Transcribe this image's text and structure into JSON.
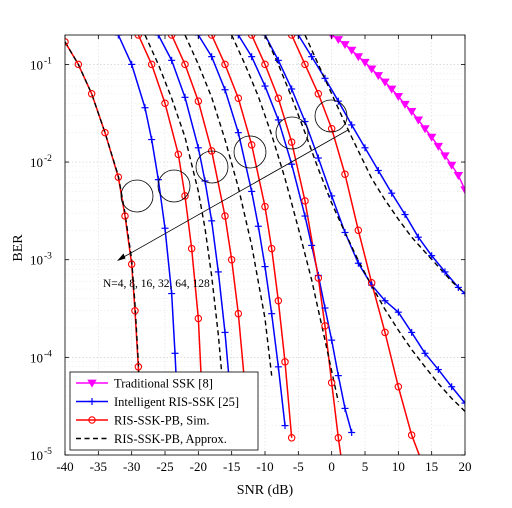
{
  "chart_data": {
    "type": "line",
    "title": "",
    "xlabel": "SNR (dB)",
    "ylabel": "BER",
    "xlim": [
      -40,
      20
    ],
    "ylim": [
      1e-05,
      0.2
    ],
    "yscale": "log",
    "grid": true,
    "legend_position": "bottom-left",
    "xticks": [
      -40,
      -35,
      -30,
      -25,
      -20,
      -15,
      -10,
      -5,
      0,
      5,
      10,
      15,
      20
    ],
    "xtick_labels": [
      "-40",
      "-35",
      "-30",
      "-25",
      "-20",
      "-15",
      "-10",
      "-5",
      "0",
      "5",
      "10",
      "15",
      "20"
    ],
    "yticks": [
      1e-05,
      0.0001,
      0.001,
      0.01,
      0.1
    ],
    "ytick_labels": [
      "10^-5",
      "10^-4",
      "10^-3",
      "10^-2",
      "10^-1"
    ],
    "annotation": "N=4, 8, 16, 32, 64, 128",
    "legend": [
      {
        "label": "Traditional SSK [8]",
        "color": "#ff00ff",
        "marker": "triangle-down",
        "dash": "solid"
      },
      {
        "label": "Intelligent RIS-SSK [25]",
        "color": "#0000ff",
        "marker": "plus",
        "dash": "solid"
      },
      {
        "label": "RIS-SSK-PB, Sim.",
        "color": "#ff0000",
        "marker": "circle",
        "dash": "solid"
      },
      {
        "label": "RIS-SSK-PB, Approx.",
        "color": "#000000",
        "marker": "none",
        "dash": "dashed"
      }
    ],
    "series": [
      {
        "name": "Traditional SSK [8]",
        "color": "#ff00ff",
        "marker": "triangle-down",
        "dash": "solid",
        "x": [
          0,
          1,
          2,
          3,
          4,
          5,
          6,
          7,
          8,
          9,
          10,
          11,
          12,
          13,
          14,
          15,
          16,
          17,
          18,
          19,
          20
        ],
        "y": [
          0.2,
          0.18,
          0.16,
          0.14,
          0.12,
          0.105,
          0.09,
          0.077,
          0.066,
          0.056,
          0.047,
          0.039,
          0.033,
          0.027,
          0.022,
          0.018,
          0.0145,
          0.0116,
          0.0093,
          0.0073,
          0.0052
        ]
      },
      {
        "name": "Intelligent RIS-SSK [25], N=4",
        "color": "#0000ff",
        "marker": "plus",
        "dash": "solid",
        "x": [
          -5,
          -3,
          -1,
          1,
          3,
          5,
          7,
          9,
          11,
          13,
          15,
          17,
          19,
          20
        ],
        "y": [
          0.2,
          0.12,
          0.072,
          0.042,
          0.024,
          0.014,
          0.0082,
          0.0048,
          0.0029,
          0.0017,
          0.0011,
          0.00075,
          0.00052,
          0.00045
        ]
      },
      {
        "name": "Intelligent RIS-SSK [25], N=8",
        "color": "#0000ff",
        "marker": "plus",
        "dash": "solid",
        "x": [
          -10,
          -8,
          -6,
          -4,
          -2,
          0,
          2,
          4,
          6,
          8,
          10,
          12,
          14,
          16,
          18,
          20
        ],
        "y": [
          0.2,
          0.11,
          0.056,
          0.026,
          0.011,
          0.0045,
          0.0019,
          0.00092,
          0.00055,
          0.00038,
          0.00029,
          0.00018,
          0.00011,
          7.5e-05,
          5e-05,
          3.4e-05
        ]
      },
      {
        "name": "Intelligent RIS-SSK [25], N=16",
        "color": "#0000ff",
        "marker": "plus",
        "dash": "solid",
        "x": [
          -14,
          -12,
          -10,
          -8,
          -6,
          -4,
          -3,
          -2,
          -1,
          0,
          1,
          2,
          3
        ],
        "y": [
          0.2,
          0.12,
          0.06,
          0.027,
          0.0095,
          0.0028,
          0.0014,
          0.00069,
          0.00032,
          0.00015,
          6.5e-05,
          3e-05,
          1.7e-05
        ]
      },
      {
        "name": "Intelligent RIS-SSK [25], N=32",
        "color": "#0000ff",
        "marker": "plus",
        "dash": "solid",
        "x": [
          -20,
          -18,
          -16,
          -14,
          -12,
          -11,
          -10,
          -9,
          -8,
          -7
        ],
        "y": [
          0.2,
          0.12,
          0.055,
          0.02,
          0.005,
          0.0022,
          0.00085,
          0.00028,
          8e-05,
          2e-05
        ]
      },
      {
        "name": "Intelligent RIS-SSK [25], N=64",
        "color": "#0000ff",
        "marker": "plus",
        "dash": "solid",
        "x": [
          -26,
          -24,
          -22,
          -20,
          -19,
          -18,
          -17,
          -16,
          -15
        ],
        "y": [
          0.2,
          0.11,
          0.046,
          0.014,
          0.0064,
          0.0025,
          0.00075,
          0.00018,
          3e-05
        ]
      },
      {
        "name": "Intelligent RIS-SSK [25], N=128",
        "color": "#0000ff",
        "marker": "plus",
        "dash": "solid",
        "x": [
          -32,
          -30,
          -28,
          -27,
          -26,
          -25,
          -24,
          -23.5,
          -23
        ],
        "y": [
          0.2,
          0.1,
          0.036,
          0.017,
          0.0066,
          0.0021,
          0.00045,
          0.00011,
          2.2e-05
        ]
      },
      {
        "name": "RIS-SSK-PB, Sim., N=4",
        "color": "#ff0000",
        "marker": "circle",
        "dash": "solid",
        "x": [
          -6,
          -4,
          -2,
          0,
          2,
          4,
          6,
          8,
          10,
          12,
          14
        ],
        "y": [
          0.2,
          0.1,
          0.05,
          0.022,
          0.0075,
          0.002,
          0.00058,
          0.00018,
          5e-05,
          1.6e-05,
          7e-06
        ]
      },
      {
        "name": "RIS-SSK-PB, Sim., N=8",
        "color": "#ff0000",
        "marker": "circle",
        "dash": "solid",
        "x": [
          -12,
          -10,
          -8,
          -6,
          -4,
          -2,
          -1,
          0,
          1,
          2
        ],
        "y": [
          0.2,
          0.1,
          0.045,
          0.016,
          0.004,
          0.00065,
          0.00021,
          5.5e-05,
          1.5e-05,
          5e-06
        ]
      },
      {
        "name": "RIS-SSK-PB, Sim., N=16",
        "color": "#ff0000",
        "marker": "circle",
        "dash": "solid",
        "x": [
          -18,
          -16,
          -14,
          -12,
          -10,
          -9,
          -8,
          -7,
          -6
        ],
        "y": [
          0.2,
          0.1,
          0.045,
          0.015,
          0.0035,
          0.0013,
          0.00038,
          9e-05,
          1.5e-05
        ]
      },
      {
        "name": "RIS-SSK-PB, Sim., N=32",
        "color": "#ff0000",
        "marker": "circle",
        "dash": "solid",
        "x": [
          -24,
          -22,
          -20,
          -18,
          -16,
          -15,
          -14,
          -13
        ],
        "y": [
          0.2,
          0.1,
          0.042,
          0.013,
          0.0028,
          0.001,
          0.00028,
          5e-05
        ]
      },
      {
        "name": "RIS-SSK-PB, Sim., N=64",
        "color": "#ff0000",
        "marker": "circle",
        "dash": "solid",
        "x": [
          -29,
          -27,
          -25,
          -23,
          -22,
          -21,
          -20,
          -19.5
        ],
        "y": [
          0.2,
          0.1,
          0.04,
          0.012,
          0.0045,
          0.0013,
          0.00025,
          5e-05
        ]
      },
      {
        "name": "RIS-SSK-PB, Sim., N=128",
        "color": "#ff0000",
        "marker": "circle",
        "dash": "solid",
        "x": [
          -40,
          -38,
          -36,
          -34,
          -32,
          -31,
          -30,
          -29.5,
          -29,
          -28.6
        ],
        "y": [
          0.17,
          0.1,
          0.05,
          0.02,
          0.007,
          0.0028,
          0.0009,
          0.0003,
          8e-05,
          1.5e-05
        ]
      },
      {
        "name": "RIS-SSK-PB, Approx., N=4",
        "color": "#000000",
        "marker": "none",
        "dash": "dashed",
        "x": [
          -4,
          -2,
          0,
          2,
          4,
          6,
          8,
          10,
          12,
          14,
          16,
          18,
          20
        ],
        "y": [
          0.2,
          0.1,
          0.05,
          0.025,
          0.013,
          0.0068,
          0.0041,
          0.0026,
          0.0017,
          0.0012,
          0.00085,
          0.0006,
          0.00045
        ]
      },
      {
        "name": "RIS-SSK-PB, Approx., N=8",
        "color": "#000000",
        "marker": "none",
        "dash": "dashed",
        "x": [
          -10,
          -8,
          -6,
          -4,
          -2,
          0,
          2,
          4,
          6,
          8,
          10,
          12,
          14,
          16,
          18,
          20
        ],
        "y": [
          0.2,
          0.1,
          0.046,
          0.02,
          0.0085,
          0.0038,
          0.0019,
          0.00098,
          0.00054,
          0.00031,
          0.00019,
          0.00012,
          8e-05,
          5.4e-05,
          3.8e-05,
          2.8e-05
        ]
      },
      {
        "name": "RIS-SSK-PB, Approx., N=16",
        "color": "#000000",
        "marker": "none",
        "dash": "dashed",
        "x": [
          -15,
          -13,
          -11,
          -9,
          -7,
          -5,
          -3,
          -1,
          1
        ],
        "y": [
          0.2,
          0.1,
          0.047,
          0.019,
          0.0068,
          0.0021,
          0.00062,
          0.00015,
          3.5e-05
        ]
      },
      {
        "name": "RIS-SSK-PB, Approx., N=32",
        "color": "#000000",
        "marker": "none",
        "dash": "dashed",
        "x": [
          -22,
          -20,
          -18,
          -16,
          -14,
          -12,
          -10,
          -9
        ],
        "y": [
          0.2,
          0.1,
          0.046,
          0.017,
          0.0055,
          0.0014,
          0.00025,
          6.5e-05
        ]
      },
      {
        "name": "RIS-SSK-PB, Approx., N=64",
        "color": "#000000",
        "marker": "none",
        "dash": "dashed",
        "x": [
          -28,
          -26,
          -24,
          -22,
          -20,
          -19,
          -18,
          -17,
          -16.5
        ],
        "y": [
          0.2,
          0.1,
          0.045,
          0.018,
          0.005,
          0.0021,
          0.00068,
          0.00017,
          7e-05
        ]
      },
      {
        "name": "RIS-SSK-PB, Approx., N=128",
        "color": "#000000",
        "marker": "none",
        "dash": "dashed",
        "x": [
          -40,
          -38,
          -36,
          -34,
          -32,
          -31,
          -30,
          -29.5,
          -29,
          -28.8
        ],
        "y": [
          0.17,
          0.1,
          0.05,
          0.02,
          0.0072,
          0.003,
          0.001,
          0.00035,
          9e-05,
          3e-05
        ]
      }
    ]
  }
}
